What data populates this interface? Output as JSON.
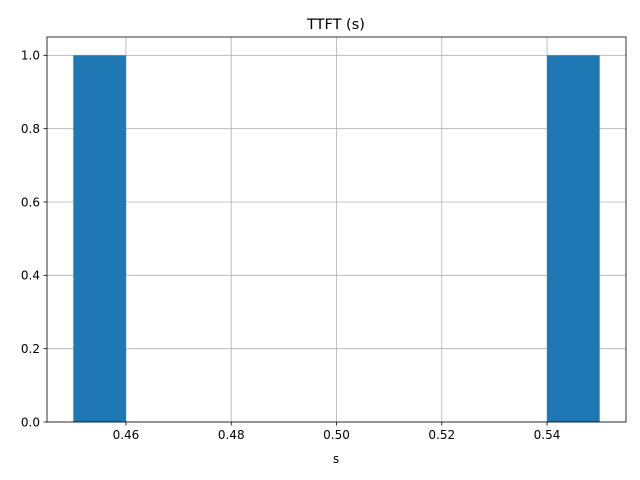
{
  "chart_data": {
    "type": "bar",
    "subtype": "histogram",
    "title": "TTFT (s)",
    "xlabel": "s",
    "ylabel": "",
    "xlim": [
      0.445,
      0.555
    ],
    "ylim": [
      0,
      1.05
    ],
    "x_ticks": [
      0.46,
      0.48,
      0.5,
      0.52,
      0.54
    ],
    "x_tick_labels": [
      "0.46",
      "0.48",
      "0.50",
      "0.52",
      "0.54"
    ],
    "y_ticks": [
      0.0,
      0.2,
      0.4,
      0.6,
      0.8,
      1.0
    ],
    "y_tick_labels": [
      "0.0",
      "0.2",
      "0.4",
      "0.6",
      "0.8",
      "1.0"
    ],
    "bins": [
      {
        "x0": 0.45,
        "x1": 0.46,
        "count": 1
      },
      {
        "x0": 0.46,
        "x1": 0.47,
        "count": 0
      },
      {
        "x0": 0.47,
        "x1": 0.48,
        "count": 0
      },
      {
        "x0": 0.48,
        "x1": 0.49,
        "count": 0
      },
      {
        "x0": 0.49,
        "x1": 0.5,
        "count": 0
      },
      {
        "x0": 0.5,
        "x1": 0.51,
        "count": 0
      },
      {
        "x0": 0.51,
        "x1": 0.52,
        "count": 0
      },
      {
        "x0": 0.52,
        "x1": 0.53,
        "count": 0
      },
      {
        "x0": 0.53,
        "x1": 0.54,
        "count": 0
      },
      {
        "x0": 0.54,
        "x1": 0.55,
        "count": 1
      }
    ],
    "grid": true,
    "bar_color": "#1f77b4",
    "grid_color": "#b0b0b0"
  }
}
